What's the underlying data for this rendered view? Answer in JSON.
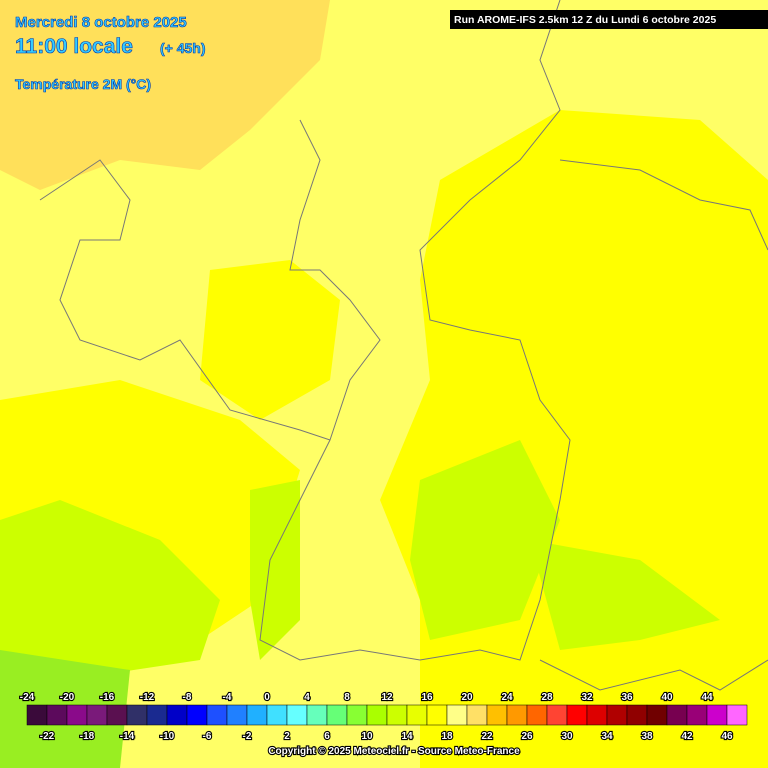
{
  "header": {
    "date": "Mercredi 8 octobre 2025",
    "time": "11:00 locale",
    "lead": "(+ 45h)",
    "parameter": "Température 2M (°C)",
    "run": "Run AROME-IFS 2.5km 12 Z du Lundi 6 octobre 2025"
  },
  "legend": {
    "top_labels": [
      "-24",
      "-20",
      "-16",
      "-12",
      "-8",
      "-4",
      "0",
      "4",
      "8",
      "12",
      "16",
      "20",
      "24",
      "28",
      "32",
      "36",
      "40",
      "44"
    ],
    "bottom_labels": [
      "-22",
      "-18",
      "-14",
      "-10",
      "-6",
      "-2",
      "2",
      "6",
      "10",
      "14",
      "18",
      "22",
      "26",
      "30",
      "34",
      "38",
      "42",
      "46"
    ],
    "colors": [
      "#3a0a3a",
      "#5c0a5c",
      "#8a0a8a",
      "#7a1a7a",
      "#5a1050",
      "#303068",
      "#1a2a90",
      "#0000c8",
      "#0000ff",
      "#1e50ff",
      "#2080ff",
      "#20b0ff",
      "#40e0ff",
      "#66ffff",
      "#66ffbb",
      "#66ff77",
      "#88ff33",
      "#aaff00",
      "#ccff00",
      "#e8ff00",
      "#ffff00",
      "#ffff88",
      "#ffe066",
      "#ffc000",
      "#ff9900",
      "#ff6600",
      "#ff4433",
      "#ff0000",
      "#dd0000",
      "#b00000",
      "#900000",
      "#700000",
      "#770050",
      "#990077",
      "#cc00cc",
      "#ff66ff"
    ]
  },
  "footer": {
    "copyright": "Copyright © 2025 Meteociel.fr - Source Meteo-France"
  }
}
